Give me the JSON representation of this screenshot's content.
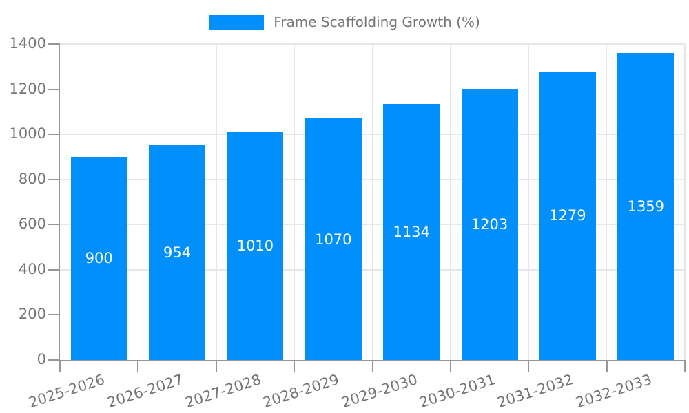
{
  "colors": {
    "bar": "#008ffb",
    "grid": "#e6e6e6",
    "axis": "#969696",
    "label": "#757575",
    "value_text": "#ffffff",
    "background": "#ffffff"
  },
  "legend": {
    "items": [
      {
        "label": "Frame Scaffolding Growth (%)",
        "swatch_color": "#008ffb"
      }
    ]
  },
  "chart_data": {
    "type": "bar",
    "title": "Frame Scaffolding Growth (%)",
    "xlabel": "",
    "ylabel": "",
    "categories": [
      "2025-2026",
      "2026-2027",
      "2027-2028",
      "2028-2029",
      "2029-2030",
      "2030-2031",
      "2031-2032",
      "2032-2033"
    ],
    "series": [
      {
        "name": "Frame Scaffolding Growth (%)",
        "values": [
          900,
          954,
          1010,
          1070,
          1134,
          1203,
          1279,
          1359
        ]
      }
    ],
    "bar_value_labels": [
      "900",
      "954",
      "1010",
      "1070",
      "1134",
      "1203",
      "1279",
      "1359"
    ],
    "value_label_position": "inside-center",
    "ylim": [
      0,
      1400
    ],
    "yticks": [
      0,
      200,
      400,
      600,
      800,
      1000,
      1200,
      1400
    ],
    "grid": true,
    "legend_position": "top-center",
    "x_tick_rotation_deg": -18
  }
}
